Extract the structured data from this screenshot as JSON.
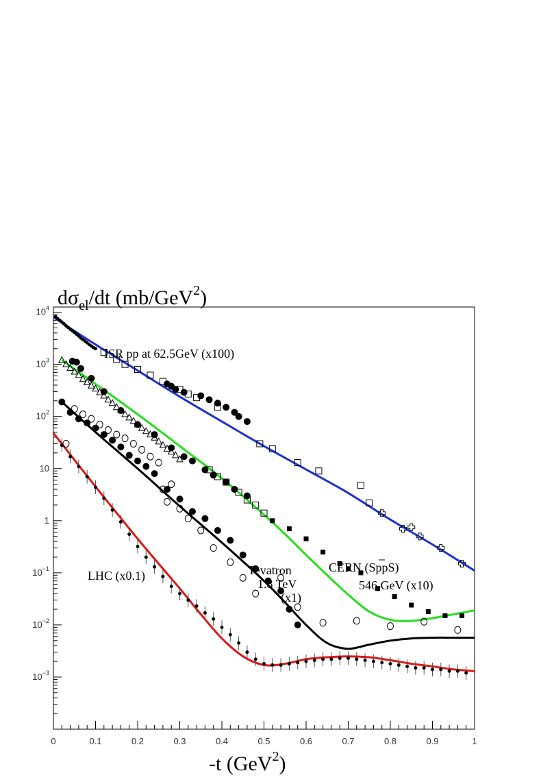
{
  "chart_data": {
    "type": "scatter",
    "title": "",
    "ylabel": {
      "main": "dσ",
      "sub": "el",
      "rest": "/dt  (mb/GeV",
      "sup": "2",
      "close": ")"
    },
    "xlabel": {
      "main": "-t  (GeV",
      "sup": "2",
      "close": ")"
    },
    "xlim": [
      0,
      1
    ],
    "ylim_log10": [
      -4,
      4.1
    ],
    "y_scale": "log",
    "grid": false,
    "x_ticks": [
      "0",
      "0.1",
      "0.2",
      "0.3",
      "0.4",
      "0.5",
      "0.6",
      "0.7",
      "0.8",
      "0.9",
      "1"
    ],
    "x_tick_values": [
      0,
      0.1,
      0.2,
      0.3,
      0.4,
      0.5,
      0.6,
      0.7,
      0.8,
      0.9,
      1
    ],
    "y_ticks": [
      {
        "log": 4,
        "base": "10",
        "exp": "4"
      },
      {
        "log": 3,
        "base": "10",
        "exp": "3"
      },
      {
        "log": 2,
        "base": "10",
        "exp": "2"
      },
      {
        "log": 1,
        "base": "10",
        "exp": ""
      },
      {
        "log": 0,
        "base": "1",
        "exp": ""
      },
      {
        "log": -1,
        "base": "10",
        "exp": "−1"
      },
      {
        "log": -2,
        "base": "10",
        "exp": "−2"
      },
      {
        "log": -3,
        "base": "10",
        "exp": "−3"
      }
    ],
    "annotations": {
      "isr": "ISR pp at 62.5GeV   (x100)",
      "cern_name": "CERN (SppS)",
      "cern_energy": "546 GeV  (x10)",
      "tevatron_name": "Tevatron",
      "tevatron_energy": "1.8 TeV",
      "tevatron_scale": "(x1)",
      "lhc": "LHC (x0.1)"
    },
    "curves": [
      {
        "id": "isr",
        "color": "#1f2fd1",
        "x": [
          0,
          0.1,
          0.2,
          0.3,
          0.4,
          0.5,
          0.6,
          0.7,
          0.8,
          0.9,
          1.0
        ],
        "y": [
          8000,
          2400,
          760,
          240,
          80,
          27,
          9.6,
          3.4,
          1.05,
          0.35,
          0.11
        ]
      },
      {
        "id": "cern",
        "color": "#22e01a",
        "x": [
          0.02,
          0.1,
          0.2,
          0.3,
          0.4,
          0.5,
          0.55,
          0.6,
          0.65,
          0.7,
          0.75,
          0.8,
          0.85,
          0.9,
          0.95,
          1.0
        ],
        "y": [
          1200,
          420,
          110,
          27,
          6.5,
          1.3,
          0.55,
          0.22,
          0.09,
          0.038,
          0.018,
          0.0125,
          0.012,
          0.0135,
          0.016,
          0.019
        ]
      },
      {
        "id": "tevatron",
        "color": "#000000",
        "x": [
          0.02,
          0.1,
          0.2,
          0.3,
          0.4,
          0.5,
          0.55,
          0.6,
          0.65,
          0.7,
          0.75,
          0.8,
          0.85,
          0.9,
          0.95,
          1.0
        ],
        "y": [
          190,
          50,
          10,
          1.9,
          0.38,
          0.07,
          0.027,
          0.01,
          0.0045,
          0.0035,
          0.0042,
          0.005,
          0.0055,
          0.0057,
          0.0057,
          0.0057
        ]
      },
      {
        "id": "lhc",
        "color": "#e01515",
        "x": [
          0,
          0.1,
          0.2,
          0.3,
          0.35,
          0.4,
          0.45,
          0.5,
          0.55,
          0.6,
          0.65,
          0.7,
          0.75,
          0.8,
          0.85,
          0.9,
          0.95,
          1.0
        ],
        "y": [
          48,
          4.5,
          0.45,
          0.05,
          0.016,
          0.0055,
          0.0025,
          0.0017,
          0.0018,
          0.0022,
          0.0024,
          0.0025,
          0.0024,
          0.0021,
          0.0018,
          0.0016,
          0.0014,
          0.0013
        ]
      }
    ],
    "series": [
      {
        "id": "isr-dense",
        "marker": "small-filled",
        "x": [
          0.005,
          0.01,
          0.015,
          0.02,
          0.025,
          0.03,
          0.035,
          0.04,
          0.045,
          0.05,
          0.055,
          0.06,
          0.065,
          0.07,
          0.075,
          0.08,
          0.085,
          0.09,
          0.095,
          0.1
        ],
        "y": [
          8200,
          7500,
          7000,
          6500,
          6000,
          5500,
          5100,
          4700,
          4400,
          4100,
          3800,
          3500,
          3200,
          3000,
          2800,
          2600,
          2400,
          2250,
          2100,
          2000
        ]
      },
      {
        "id": "isr-open-squares",
        "marker": "open-square",
        "x": [
          0.12,
          0.15,
          0.17,
          0.2,
          0.23,
          0.26,
          0.3,
          0.32,
          0.34,
          0.39,
          0.49,
          0.52,
          0.58,
          0.63,
          0.73,
          0.75
        ],
        "y": [
          1700,
          1250,
          1000,
          800,
          620,
          470,
          330,
          270,
          230,
          150,
          30,
          24,
          13,
          9,
          4.8,
          2.2
        ]
      },
      {
        "id": "isr-filled-circles",
        "marker": "filled-circle",
        "x": [
          0.27,
          0.28,
          0.29,
          0.31,
          0.35,
          0.37,
          0.39,
          0.41,
          0.43,
          0.44,
          0.46
        ],
        "y": [
          420,
          380,
          330,
          290,
          250,
          210,
          180,
          150,
          120,
          100,
          80
        ]
      },
      {
        "id": "isr-open-crosses",
        "marker": "open-cross",
        "x": [
          0.78,
          0.83,
          0.85,
          0.87,
          0.92,
          0.97
        ],
        "y": [
          1.4,
          0.7,
          0.75,
          0.5,
          0.3,
          0.15
        ]
      },
      {
        "id": "cern-triangles",
        "marker": "open-triangle",
        "x": [
          0.02,
          0.03,
          0.04,
          0.05,
          0.06,
          0.07,
          0.08,
          0.09,
          0.1,
          0.11,
          0.12,
          0.13,
          0.14,
          0.15,
          0.16,
          0.17,
          0.18,
          0.19,
          0.2,
          0.21,
          0.22,
          0.23,
          0.24,
          0.25,
          0.26,
          0.27,
          0.28,
          0.29,
          0.3
        ],
        "y": [
          1200,
          1000,
          850,
          720,
          620,
          520,
          450,
          390,
          340,
          290,
          250,
          210,
          180,
          150,
          130,
          110,
          95,
          82,
          70,
          60,
          52,
          45,
          39,
          33,
          28,
          24,
          21,
          18,
          15
        ]
      },
      {
        "id": "cern-filled-circles",
        "marker": "filled-circle",
        "x": [
          0.045,
          0.055,
          0.065,
          0.09,
          0.12,
          0.16,
          0.2,
          0.24,
          0.28,
          0.31,
          0.33,
          0.36,
          0.38,
          0.41,
          0.43,
          0.46
        ],
        "y": [
          1150,
          1100,
          830,
          540,
          300,
          130,
          70,
          45,
          25,
          17,
          14,
          9.5,
          7.5,
          5.5,
          4,
          3
        ]
      },
      {
        "id": "cern-open-squares",
        "marker": "open-square",
        "x": [
          0.37,
          0.39,
          0.41,
          0.44,
          0.46,
          0.48,
          0.5
        ],
        "y": [
          9.5,
          7,
          5.5,
          3.5,
          2.5,
          2,
          1.4
        ]
      },
      {
        "id": "cern-filled-squares",
        "marker": "filled-square",
        "x": [
          0.52,
          0.56,
          0.6,
          0.64,
          0.68,
          0.7,
          0.73,
          0.77,
          0.81,
          0.85,
          0.89,
          0.93,
          0.97
        ],
        "y": [
          1.0,
          0.7,
          0.45,
          0.25,
          0.15,
          0.12,
          0.1,
          0.05,
          0.035,
          0.024,
          0.018,
          0.015,
          0.015
        ]
      },
      {
        "id": "tevatron-open-circles",
        "marker": "open-circle",
        "x": [
          0.03,
          0.05,
          0.07,
          0.09,
          0.11,
          0.13,
          0.15,
          0.17,
          0.19,
          0.21,
          0.23,
          0.25,
          0.26,
          0.27,
          0.28,
          0.3,
          0.32,
          0.35,
          0.38,
          0.42,
          0.45,
          0.48,
          0.54,
          0.58,
          0.64,
          0.72,
          0.8,
          0.88,
          0.96
        ],
        "y": [
          30,
          140,
          110,
          90,
          70,
          55,
          45,
          38,
          30,
          23,
          17,
          13,
          4,
          2.3,
          5,
          1.7,
          1.1,
          0.65,
          0.3,
          0.16,
          0.08,
          0.04,
          0.08,
          0.022,
          0.011,
          0.012,
          0.0095,
          0.0115,
          0.008
        ]
      },
      {
        "id": "tevatron-filled-circles",
        "marker": "filled-circle",
        "x": [
          0.02,
          0.04,
          0.06,
          0.08,
          0.1,
          0.12,
          0.14,
          0.16,
          0.18,
          0.2,
          0.22,
          0.24,
          0.27,
          0.3,
          0.33,
          0.36,
          0.39,
          0.42,
          0.45,
          0.48,
          0.51,
          0.54,
          0.56,
          0.58
        ],
        "y": [
          190,
          120,
          90,
          75,
          60,
          45,
          35,
          26,
          18,
          14,
          11,
          8,
          4,
          2.6,
          1.5,
          1.1,
          0.65,
          0.42,
          0.22,
          0.12,
          0.07,
          0.045,
          0.02,
          0.01
        ]
      },
      {
        "id": "lhc-data",
        "marker": "small-filled",
        "x": [
          0.02,
          0.04,
          0.06,
          0.08,
          0.1,
          0.12,
          0.14,
          0.16,
          0.18,
          0.2,
          0.22,
          0.24,
          0.26,
          0.28,
          0.3,
          0.32,
          0.34,
          0.36,
          0.38,
          0.4,
          0.42,
          0.44,
          0.46,
          0.48,
          0.5,
          0.52,
          0.54,
          0.56,
          0.58,
          0.6,
          0.62,
          0.64,
          0.66,
          0.68,
          0.7,
          0.72,
          0.74,
          0.76,
          0.78,
          0.8,
          0.82,
          0.84,
          0.86,
          0.88,
          0.9,
          0.92,
          0.94,
          0.96,
          0.98
        ],
        "y": [
          28,
          17,
          11,
          7,
          4.4,
          2.7,
          1.6,
          0.95,
          0.55,
          0.32,
          0.2,
          0.13,
          0.085,
          0.055,
          0.04,
          0.03,
          0.023,
          0.017,
          0.013,
          0.009,
          0.0065,
          0.0045,
          0.003,
          0.0022,
          0.0018,
          0.0017,
          0.0017,
          0.0018,
          0.0019,
          0.002,
          0.0021,
          0.0022,
          0.0022,
          0.0023,
          0.0023,
          0.0022,
          0.0021,
          0.002,
          0.0019,
          0.0018,
          0.0017,
          0.0016,
          0.0015,
          0.0015,
          0.0014,
          0.0014,
          0.0013,
          0.0013,
          0.0012
        ],
        "error_bars": true
      }
    ]
  }
}
